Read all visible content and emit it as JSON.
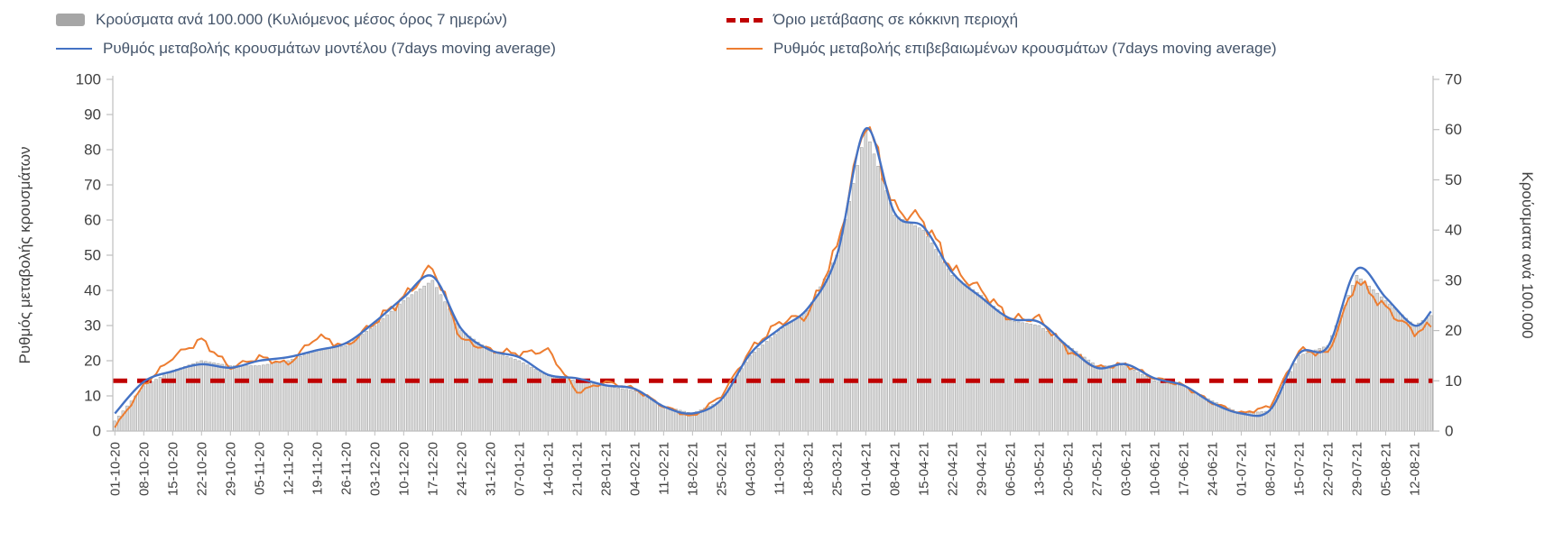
{
  "legend": {
    "cases": "Κρούσματα ανά 100.000 (Κυλιόμενος μέσος όρος 7 ημερών)",
    "threshold": "Όριο μετάβασης σε κόκκινη περιοχή",
    "model": "Ρυθμός μεταβολής κρουσμάτων μοντέλου (7days moving average)",
    "confirmed": "Ρυθμός μεταβολής επιβεβαιωμένων κρουσμάτων (7days moving average)"
  },
  "colors": {
    "bars_fill": "#d9d9d9",
    "bars_border": "#a6a6a6",
    "bars_legend": "#a6a6a6",
    "model_line": "#4472c4",
    "confirmed_line": "#ed7d31",
    "threshold_line": "#c00000",
    "axis_line": "#bfbfbf",
    "tick_text": "#404040",
    "background": "#ffffff"
  },
  "chart_data": {
    "type": "bar",
    "subtype": "composite: daily bars (right axis) + two lines (left axis) + dashed threshold line",
    "grid": false,
    "legend_position": "top",
    "x_resolution": "daily; weekly anchor values listed below (one per x tick label), intermediate days interpolated",
    "x_tick_labels": [
      "01-10-20",
      "08-10-20",
      "15-10-20",
      "22-10-20",
      "29-10-20",
      "05-11-20",
      "12-11-20",
      "19-11-20",
      "26-11-20",
      "03-12-20",
      "10-12-20",
      "17-12-20",
      "24-12-20",
      "31-12-20",
      "07-01-21",
      "14-01-21",
      "21-01-21",
      "28-01-21",
      "04-02-21",
      "11-02-21",
      "18-02-21",
      "25-02-21",
      "04-03-21",
      "11-03-21",
      "18-03-21",
      "25-03-21",
      "01-04-21",
      "08-04-21",
      "15-04-21",
      "22-04-21",
      "29-04-21",
      "06-05-21",
      "13-05-21",
      "20-05-21",
      "27-05-21",
      "03-06-21",
      "10-06-21",
      "17-06-21",
      "24-06-21",
      "01-07-21",
      "08-07-21",
      "15-07-21",
      "22-07-21",
      "29-07-21",
      "05-08-21",
      "12-08-21"
    ],
    "axes": {
      "left": {
        "title": "Ρυθμός μεταβολής κρουσμάτων",
        "min": 0,
        "max": 100,
        "step": 10,
        "ticks": [
          100,
          90,
          80,
          70,
          60,
          50,
          40,
          30,
          20,
          10,
          0
        ]
      },
      "right": {
        "title": "Κρούσματα ανά 100.000",
        "min": 0,
        "max": 70,
        "step": 10,
        "ticks": [
          70,
          60,
          50,
          40,
          30,
          20,
          10,
          0
        ]
      }
    },
    "series": [
      {
        "role": "cases",
        "name": "Κρούσματα ανά 100.000 (Κυλιόμενος μέσος όρος 7 ημερών)",
        "type": "bar",
        "axis": "right",
        "color": "#d9d9d9",
        "border": "#a6a6a6",
        "weekly_values": [
          2,
          9,
          12,
          14,
          13,
          13,
          14,
          16,
          17,
          21,
          26,
          30,
          20,
          16,
          14,
          11,
          10,
          9,
          8,
          5,
          3.5,
          6,
          15,
          20,
          24,
          35,
          60,
          43,
          40,
          31,
          27,
          22,
          21,
          17,
          13,
          13,
          10,
          9,
          6,
          3.5,
          4,
          15,
          17,
          31,
          26,
          21
        ]
      },
      {
        "role": "model",
        "name": "Ρυθμός μεταβολής κρουσμάτων μοντέλου (7days moving average)",
        "type": "line",
        "axis": "left",
        "color": "#4472c4",
        "weekly_values": [
          5,
          14,
          17,
          19,
          18,
          20,
          21,
          23,
          25,
          31,
          38,
          44,
          29,
          23,
          21,
          16,
          15,
          13,
          12,
          7,
          5,
          9,
          22,
          29,
          35,
          50,
          86,
          62,
          58,
          45,
          38,
          32,
          31,
          24,
          18,
          19,
          15,
          13,
          8,
          5,
          6,
          22,
          24,
          46,
          38,
          30
        ]
      },
      {
        "role": "confirmed",
        "name": "Ρυθμός μεταβολής επιβεβαιωμένων κρουσμάτων (7days moving average)",
        "type": "line",
        "axis": "left",
        "color": "#ed7d31",
        "weekly_values": [
          1,
          13,
          21,
          26,
          18,
          21,
          19,
          27,
          24,
          31,
          38,
          47,
          26,
          23,
          22,
          23,
          11,
          14,
          12,
          7,
          4,
          10,
          23,
          31,
          33,
          52,
          89,
          63,
          60,
          46,
          40,
          32,
          32,
          23,
          18,
          19,
          15,
          13,
          8,
          5,
          7,
          23,
          22,
          43,
          35,
          28
        ]
      }
    ],
    "threshold": {
      "label": "Όριο μετάβασης σε κόκκινη περιοχή",
      "axis": "right",
      "value": 10,
      "color": "#c00000",
      "style": "dashed"
    },
    "tail": {
      "offset_days": 4,
      "cases": 23,
      "model": 34,
      "confirmed": 30
    }
  }
}
